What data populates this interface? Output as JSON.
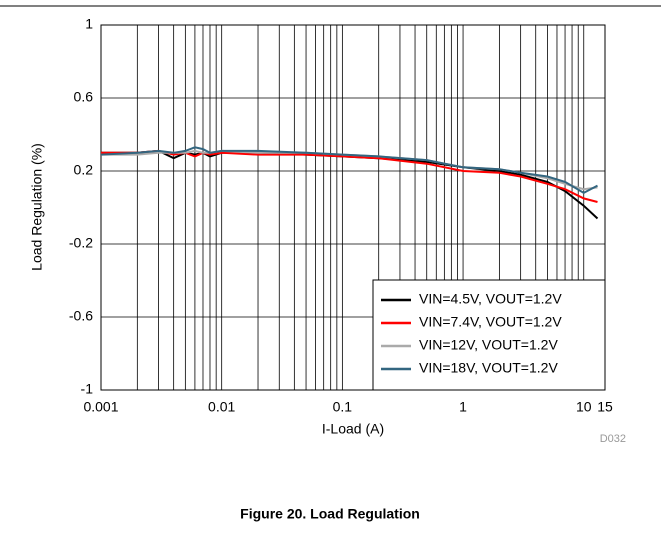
{
  "chart_data": {
    "type": "line",
    "xlabel": "I-Load (A)",
    "ylabel": "Load Regulation (%)",
    "caption": "Figure 20. Load Regulation",
    "code": "D032",
    "xscale": "log",
    "xlim": [
      0.001,
      15
    ],
    "xticks": [
      0.001,
      0.01,
      0.1,
      1,
      10,
      15
    ],
    "xminor_ticks": [
      0.002,
      0.003,
      0.004,
      0.005,
      0.006,
      0.007,
      0.008,
      0.009,
      0.02,
      0.03,
      0.04,
      0.05,
      0.06,
      0.07,
      0.08,
      0.09,
      0.2,
      0.3,
      0.4,
      0.5,
      0.6,
      0.7,
      0.8,
      0.9,
      2,
      3,
      4,
      5,
      6,
      7,
      8,
      9
    ],
    "ylim": [
      -1,
      1
    ],
    "yticks": [
      -1,
      -0.6,
      -0.2,
      0.2,
      0.6,
      1
    ],
    "grid": true,
    "legend": "lower right",
    "series": [
      {
        "name": "VIN=4.5V, VOUT=1.2V",
        "color": "#000000",
        "x": [
          0.001,
          0.002,
          0.003,
          0.004,
          0.005,
          0.006,
          0.007,
          0.008,
          0.01,
          0.02,
          0.05,
          0.1,
          0.2,
          0.5,
          1,
          2,
          3,
          5,
          7,
          10,
          13
        ],
        "values": [
          0.3,
          0.3,
          0.31,
          0.27,
          0.3,
          0.29,
          0.3,
          0.28,
          0.3,
          0.3,
          0.29,
          0.28,
          0.27,
          0.25,
          0.22,
          0.2,
          0.18,
          0.14,
          0.09,
          0.01,
          -0.06
        ]
      },
      {
        "name": "VIN=7.4V, VOUT=1.2V",
        "color": "#ff0000",
        "x": [
          0.001,
          0.002,
          0.003,
          0.004,
          0.005,
          0.006,
          0.007,
          0.008,
          0.01,
          0.02,
          0.05,
          0.1,
          0.2,
          0.5,
          1,
          2,
          3,
          5,
          7,
          10,
          13
        ],
        "values": [
          0.3,
          0.3,
          0.31,
          0.29,
          0.3,
          0.28,
          0.3,
          0.29,
          0.3,
          0.29,
          0.29,
          0.28,
          0.27,
          0.24,
          0.2,
          0.19,
          0.17,
          0.13,
          0.1,
          0.05,
          0.03
        ]
      },
      {
        "name": "VIN=12V, VOUT=1.2V",
        "color": "#aaaaaa",
        "x": [
          0.001,
          0.002,
          0.003,
          0.004,
          0.005,
          0.006,
          0.007,
          0.008,
          0.01,
          0.02,
          0.05,
          0.1,
          0.2,
          0.5,
          1,
          2,
          3,
          5,
          7,
          10,
          13
        ],
        "values": [
          0.29,
          0.29,
          0.3,
          0.3,
          0.3,
          0.31,
          0.3,
          0.3,
          0.31,
          0.3,
          0.3,
          0.29,
          0.28,
          0.26,
          0.22,
          0.21,
          0.19,
          0.16,
          0.13,
          0.1,
          0.11
        ]
      },
      {
        "name": "VIN=18V, VOUT=1.2V",
        "color": "#336680",
        "x": [
          0.001,
          0.002,
          0.003,
          0.004,
          0.005,
          0.006,
          0.007,
          0.008,
          0.01,
          0.02,
          0.05,
          0.1,
          0.2,
          0.5,
          1,
          2,
          3,
          5,
          7,
          10,
          13
        ],
        "values": [
          0.29,
          0.3,
          0.31,
          0.3,
          0.31,
          0.33,
          0.32,
          0.3,
          0.31,
          0.31,
          0.3,
          0.29,
          0.28,
          0.26,
          0.22,
          0.21,
          0.19,
          0.17,
          0.14,
          0.08,
          0.12
        ]
      }
    ]
  }
}
